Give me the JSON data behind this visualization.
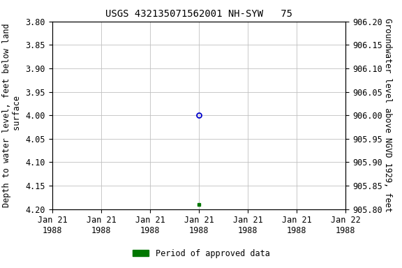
{
  "title": "USGS 432135071562001 NH-SYW   75",
  "ylabel_left": "Depth to water level, feet below land\n surface",
  "ylabel_right": "Groundwater level above NGVD 1929, feet",
  "ylim_left": [
    3.8,
    4.2
  ],
  "ylim_right": [
    905.8,
    906.2
  ],
  "yticks_left": [
    3.8,
    3.85,
    3.9,
    3.95,
    4.0,
    4.05,
    4.1,
    4.15,
    4.2
  ],
  "yticks_right": [
    905.8,
    905.85,
    905.9,
    905.95,
    906.0,
    906.05,
    906.1,
    906.15,
    906.2
  ],
  "ytick_labels_left": [
    "3.80",
    "3.85",
    "3.90",
    "3.95",
    "4.00",
    "4.05",
    "4.10",
    "4.15",
    "4.20"
  ],
  "ytick_labels_right": [
    "905.80",
    "905.85",
    "905.90",
    "905.95",
    "906.00",
    "906.05",
    "906.10",
    "906.15",
    "906.20"
  ],
  "xlim": [
    0,
    6
  ],
  "xtick_positions": [
    0,
    1,
    2,
    3,
    4,
    5,
    6
  ],
  "xtick_labels": [
    "Jan 21\n1988",
    "Jan 21\n1988",
    "Jan 21\n1988",
    "Jan 21\n1988",
    "Jan 21\n1988",
    "Jan 21\n1988",
    "Jan 22\n1988"
  ],
  "data_point_open_x": 3,
  "data_point_open_y": 4.0,
  "data_point_filled_x": 3,
  "data_point_filled_y": 4.19,
  "open_marker_color": "#0000cc",
  "filled_marker_color": "#007700",
  "legend_label": "Period of approved data",
  "legend_color": "#007700",
  "bg_color": "#ffffff",
  "grid_color": "#c0c0c0",
  "font_family": "monospace",
  "title_fontsize": 10,
  "axis_label_fontsize": 8.5,
  "tick_fontsize": 8.5
}
